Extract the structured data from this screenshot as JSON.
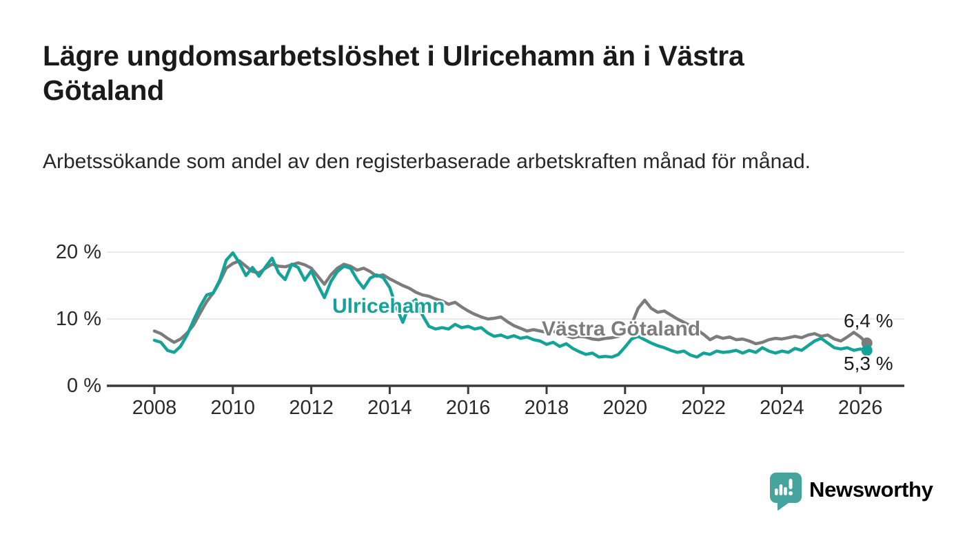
{
  "title": "Lägre ungdomsarbetslöshet i Ulricehamn än i Västra Götaland",
  "subtitle": "Arbetssökande som andel av den registerbaserade arbetskraften månad för månad.",
  "branding": {
    "logo_text": "Newsworthy",
    "logo_color": "#419f99",
    "logo_icon": "newsworthy-speech-bubble-bar-chart-icon"
  },
  "chart_data": {
    "type": "line",
    "title": "Lägre ungdomsarbetslöshet i Ulricehamn än i Västra Götaland",
    "xlabel": "",
    "ylabel": "Arbetssökande som andel av den registerbaserade arbetskraften",
    "x_unit": "year",
    "x_start": 2008,
    "x_step_years": 0.1666667,
    "x_end_approx": 2026.17,
    "x_ticks": [
      2008,
      2010,
      2012,
      2014,
      2016,
      2018,
      2020,
      2022,
      2024,
      2026
    ],
    "y_ticks": [
      0,
      10,
      20
    ],
    "y_tick_labels": [
      "20 %",
      "10 %",
      "0 %"
    ],
    "ylim": [
      0,
      21
    ],
    "grid": "horizontal",
    "legend": "inline-labels-on-lines",
    "colors": {
      "grid": "#e3e3e3",
      "axis": "#3a3a3a",
      "text": "#2a2a2a"
    },
    "series": [
      {
        "name": "Västra Götaland",
        "color": "#7c7c7c",
        "end_label": "6,4 %",
        "end_value": 6.4,
        "values": [
          8.2,
          7.8,
          7.1,
          6.5,
          7.0,
          7.9,
          9.1,
          10.9,
          12.6,
          13.9,
          15.6,
          17.6,
          18.3,
          18.7,
          17.9,
          17.1,
          16.9,
          17.6,
          18.2,
          17.9,
          17.8,
          18.1,
          18.4,
          18.1,
          17.6,
          16.4,
          15.2,
          16.6,
          17.6,
          18.2,
          17.9,
          17.3,
          17.6,
          17.1,
          16.4,
          16.6,
          16.0,
          15.5,
          15.0,
          14.6,
          14.0,
          13.6,
          13.4,
          13.0,
          12.7,
          12.2,
          12.5,
          11.8,
          11.2,
          10.7,
          10.3,
          10.0,
          10.1,
          10.3,
          9.6,
          9.0,
          8.6,
          8.2,
          8.4,
          8.2,
          8.0,
          8.2,
          7.8,
          7.5,
          7.2,
          7.4,
          7.3,
          7.0,
          6.9,
          7.1,
          7.2,
          7.4,
          7.9,
          9.2,
          11.6,
          12.8,
          11.6,
          11.0,
          11.2,
          10.6,
          10.0,
          9.5,
          9.0,
          8.4,
          7.7,
          6.9,
          7.4,
          7.1,
          7.3,
          6.9,
          7.0,
          6.7,
          6.3,
          6.5,
          6.9,
          7.1,
          7.0,
          7.2,
          7.4,
          7.2,
          7.6,
          7.8,
          7.4,
          7.6,
          7.0,
          6.7,
          7.3,
          8.0,
          7.3,
          6.4
        ]
      },
      {
        "name": "Ulricehamn",
        "color": "#14a399",
        "end_label": "5,3 %",
        "end_value": 5.3,
        "values": [
          6.8,
          6.5,
          5.3,
          5.0,
          5.9,
          7.6,
          9.8,
          11.9,
          13.6,
          13.9,
          15.8,
          18.8,
          19.9,
          18.4,
          16.5,
          17.7,
          16.4,
          17.8,
          19.1,
          16.9,
          15.9,
          18.2,
          17.7,
          15.8,
          17.2,
          15.1,
          13.2,
          15.6,
          17.1,
          17.9,
          17.6,
          15.9,
          14.6,
          16.1,
          16.6,
          16.2,
          14.7,
          11.8,
          9.5,
          12.2,
          12.9,
          10.6,
          8.9,
          8.5,
          8.7,
          8.5,
          9.2,
          8.7,
          8.9,
          8.5,
          8.7,
          7.9,
          7.4,
          7.6,
          7.2,
          7.5,
          7.1,
          7.3,
          6.9,
          6.7,
          6.2,
          6.5,
          5.9,
          6.3,
          5.6,
          5.1,
          4.7,
          4.9,
          4.3,
          4.4,
          4.3,
          4.7,
          5.8,
          7.0,
          7.4,
          6.9,
          6.4,
          6.0,
          5.7,
          5.3,
          5.0,
          5.2,
          4.6,
          4.3,
          4.9,
          4.7,
          5.2,
          5.0,
          5.1,
          5.3,
          4.9,
          5.3,
          5.0,
          5.7,
          5.2,
          4.9,
          5.2,
          5.0,
          5.6,
          5.3,
          6.0,
          6.7,
          7.1,
          6.4,
          5.7,
          5.5,
          5.7,
          5.3,
          5.5,
          5.3
        ]
      }
    ]
  }
}
